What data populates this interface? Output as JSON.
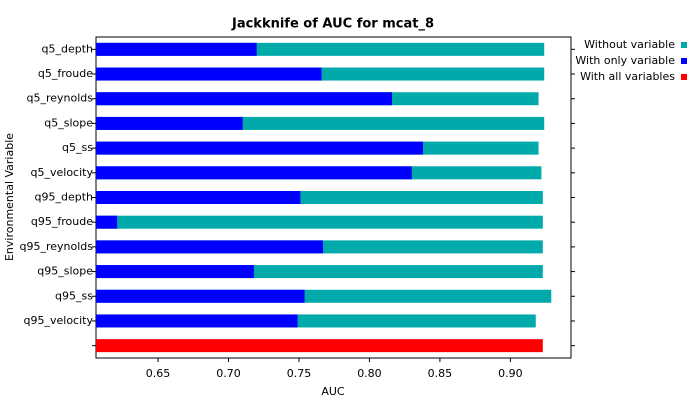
{
  "chart_data": {
    "type": "bar",
    "orientation": "horizontal",
    "overlay": true,
    "title": "Jackknife of AUC for mcat_8",
    "xlabel": "AUC",
    "ylabel": "Environmental Variable",
    "categories": [
      "q5_depth",
      "q5_froude",
      "q5_reynolds",
      "q5_slope",
      "q5_ss",
      "q5_velocity",
      "q95_depth",
      "q95_froude",
      "q95_reynolds",
      "q95_slope",
      "q95_ss",
      "q95_velocity",
      null
    ],
    "series": [
      {
        "name": "Without variable",
        "color": "#00aaaa",
        "values": [
          0.924,
          0.924,
          0.92,
          0.924,
          0.92,
          0.922,
          0.923,
          0.923,
          0.923,
          0.923,
          0.929,
          0.918,
          null
        ]
      },
      {
        "name": "With only variable",
        "color": "#0000ff",
        "values": [
          0.72,
          0.766,
          0.816,
          0.71,
          0.838,
          0.83,
          0.751,
          0.621,
          0.767,
          0.718,
          0.754,
          0.749,
          null
        ]
      },
      {
        "name": "With all variables",
        "color": "#ff0000",
        "values": [
          null,
          null,
          null,
          null,
          null,
          null,
          null,
          null,
          null,
          null,
          null,
          null,
          0.923
        ]
      }
    ],
    "xlim": [
      0.606,
      0.943
    ],
    "xticks": [
      0.65,
      {
        "value": 0.7,
        "label": "0.70"
      },
      0.75,
      {
        "value": 0.8,
        "label": "0.80"
      },
      0.85,
      {
        "value": 0.9,
        "label": "0.90"
      }
    ],
    "legend": "outside-right"
  }
}
